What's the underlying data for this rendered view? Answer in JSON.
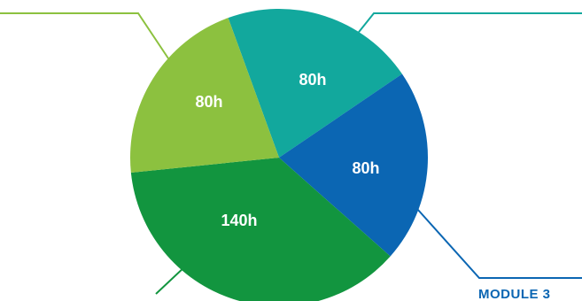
{
  "chart_data": {
    "type": "pie",
    "slices": [
      {
        "label": "80h",
        "value": 80,
        "color": "#12a89d"
      },
      {
        "label": "80h",
        "value": 80,
        "color": "#0b66b3"
      },
      {
        "label": "140h",
        "value": 140,
        "color": "#12953f"
      },
      {
        "label": "80h",
        "value": 80,
        "color": "#8cc13f"
      }
    ],
    "callouts": [
      "",
      "MODULE 3",
      "",
      ""
    ],
    "title": "",
    "legend": "none"
  }
}
